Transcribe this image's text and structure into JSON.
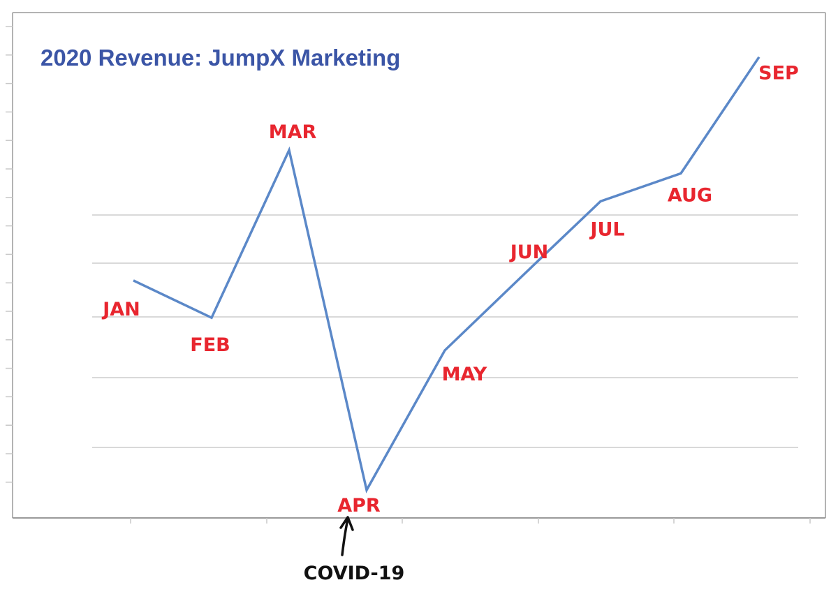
{
  "chart_data": {
    "type": "line",
    "title": "2020 Revenue: JumpX Marketing",
    "xlabel": "",
    "ylabel": "",
    "categories": [
      "JAN",
      "FEB",
      "MAR",
      "APR",
      "MAY",
      "JUN",
      "JUL",
      "AUG",
      "SEP"
    ],
    "series": [
      {
        "values": [
          5.1,
          4.3,
          7.9,
          0.6,
          3.6,
          5.2,
          6.8,
          7.4,
          9.9
        ]
      }
    ],
    "ylim": [
      0,
      10
    ],
    "grid": true,
    "legend": "none",
    "annotation": {
      "text": "COVID-19",
      "target_category": "APR",
      "arrow": "up"
    }
  },
  "colors": {
    "title": "#3b55a6",
    "line": "#5b88c8",
    "labels": "#e8262f",
    "annotation": "#111111",
    "grid": "#d9d9d9",
    "frame": "#9a9a9a"
  }
}
